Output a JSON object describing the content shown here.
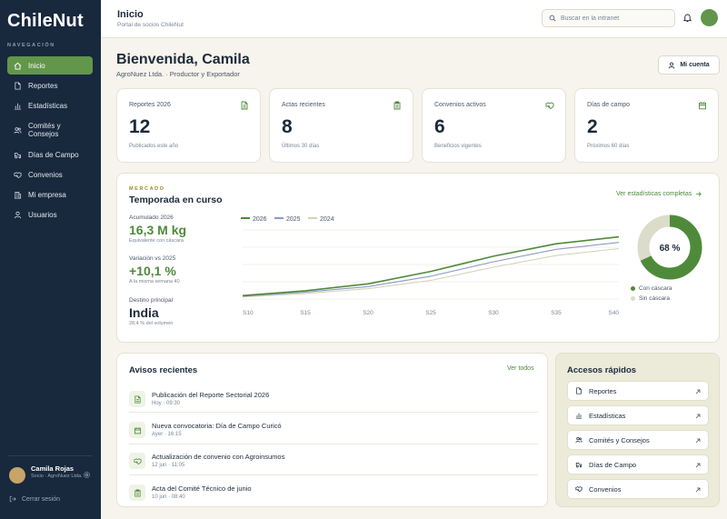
{
  "brand": {
    "logo_text": "ChileNut"
  },
  "sidebar": {
    "caption": "NAVEGACIÓN",
    "items": [
      {
        "label": "Inicio",
        "icon": "home-icon",
        "active": true
      },
      {
        "label": "Reportes",
        "icon": "document-icon"
      },
      {
        "label": "Estadísticas",
        "icon": "bar-chart-icon"
      },
      {
        "label": "Comités y Consejos",
        "icon": "users-icon"
      },
      {
        "label": "Días de Campo",
        "icon": "tractor-icon"
      },
      {
        "label": "Convenios",
        "icon": "handshake-icon"
      },
      {
        "label": "Mi empresa",
        "icon": "building-icon"
      },
      {
        "label": "Usuarios",
        "icon": "user-icon"
      }
    ],
    "user": {
      "name": "Camila Rojas",
      "role": "Socio · AgroNuez Ltda."
    },
    "logout_label": "Cerrar sesión"
  },
  "header": {
    "title": "Inicio",
    "subtitle": "Portal de socios ChileNut",
    "search_placeholder": "Buscar en la intranet"
  },
  "welcome": {
    "title": "Bienvenida, Camila",
    "subtitle": "AgroNuez Ltda. · Productor y Exportador",
    "account_button": "Mi cuenta"
  },
  "stats": [
    {
      "label": "Reportes 2026",
      "value": "12",
      "note": "Publicados este año",
      "icon": "document-icon"
    },
    {
      "label": "Actas recientes",
      "value": "8",
      "note": "Últimos 30 días",
      "icon": "clipboard-icon"
    },
    {
      "label": "Convenios activos",
      "value": "6",
      "note": "Beneficios vigentes",
      "icon": "handshake-icon"
    },
    {
      "label": "Días de campo",
      "value": "2",
      "note": "Próximos 60 días",
      "icon": "calendar-icon"
    }
  ],
  "market": {
    "eyebrow": "MERCADO",
    "title": "Temporada en curso",
    "link": "Ver estadísticas completas",
    "metrics": [
      {
        "label": "Acumulado 2026",
        "value": "16,3 M kg",
        "note": "Equivalente con cáscara"
      },
      {
        "label": "Variación vs 2025",
        "value": "+10,1 %",
        "note": "A la misma semana 40"
      },
      {
        "label": "Destino principal",
        "value": "India",
        "note": "28,4 % del volumen"
      }
    ],
    "donut": {
      "label": "68 %",
      "value": 68,
      "legend": [
        "Con cáscara",
        "Sin cáscara"
      ],
      "colors": [
        "#4f8a3a",
        "#dcdccb"
      ]
    }
  },
  "chart_data": {
    "type": "line",
    "x": [
      "S10",
      "S15",
      "S20",
      "S25",
      "S30",
      "S35",
      "S40"
    ],
    "series": [
      {
        "name": "2026",
        "color": "#4f8a3a",
        "values": [
          0.05,
          0.12,
          0.22,
          0.4,
          0.62,
          0.8,
          0.9
        ]
      },
      {
        "name": "2025",
        "color": "#8d99c0",
        "values": [
          0.04,
          0.1,
          0.18,
          0.33,
          0.54,
          0.72,
          0.82
        ]
      },
      {
        "name": "2024",
        "color": "#d6d2b8",
        "values": [
          0.03,
          0.08,
          0.15,
          0.27,
          0.46,
          0.63,
          0.73
        ]
      }
    ],
    "ylim": [
      0,
      1
    ],
    "grid": true,
    "legend": "top-left"
  },
  "notices": {
    "title": "Avisos recientes",
    "link": "Ver todos",
    "items": [
      {
        "title": "Publicación del Reporte Sectorial 2026",
        "meta": "Hoy · 09:30",
        "icon": "document-icon"
      },
      {
        "title": "Nueva convocatoria: Día de Campo Curicó",
        "meta": "Ayer · 16:15",
        "icon": "calendar-icon"
      },
      {
        "title": "Actualización de convenio con Agroinsumos",
        "meta": "12 jun · 11:05",
        "icon": "handshake-icon"
      },
      {
        "title": "Acta del Comité Técnico de junio",
        "meta": "10 jun · 08:40",
        "icon": "clipboard-icon"
      }
    ]
  },
  "quick": {
    "title": "Accesos rápidos",
    "items": [
      {
        "label": "Reportes",
        "icon": "document-icon"
      },
      {
        "label": "Estadísticas",
        "icon": "bar-chart-icon"
      },
      {
        "label": "Comités y Consejos",
        "icon": "users-icon"
      },
      {
        "label": "Días de Campo",
        "icon": "tractor-icon"
      },
      {
        "label": "Convenios",
        "icon": "handshake-icon"
      }
    ]
  }
}
